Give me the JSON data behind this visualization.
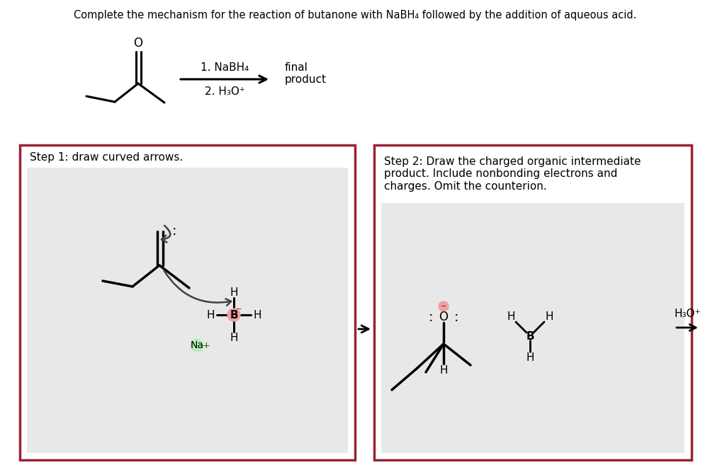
{
  "title": "Complete the mechanism for the reaction of butanone with NaBH₄ followed by the addition of aqueous acid.",
  "step1_label": "Step 1: draw curved arrows.",
  "step2_label": "Step 2: Draw the charged organic intermediate\nproduct. Include nonbonding electrons and\ncharges. Omit the counterion.",
  "reagent1": "1. NaBH₄",
  "reagent2": "2. H₃O⁺",
  "final_product": "final\nproduct",
  "h3o_plus": "H₃O⁺",
  "bg": "#ffffff",
  "box_edge": "#9b2335",
  "inner_bg": "#e8e8e8",
  "neg_dot_color": "#f0a0a0",
  "pos_dot_color": "#b8eeb8"
}
